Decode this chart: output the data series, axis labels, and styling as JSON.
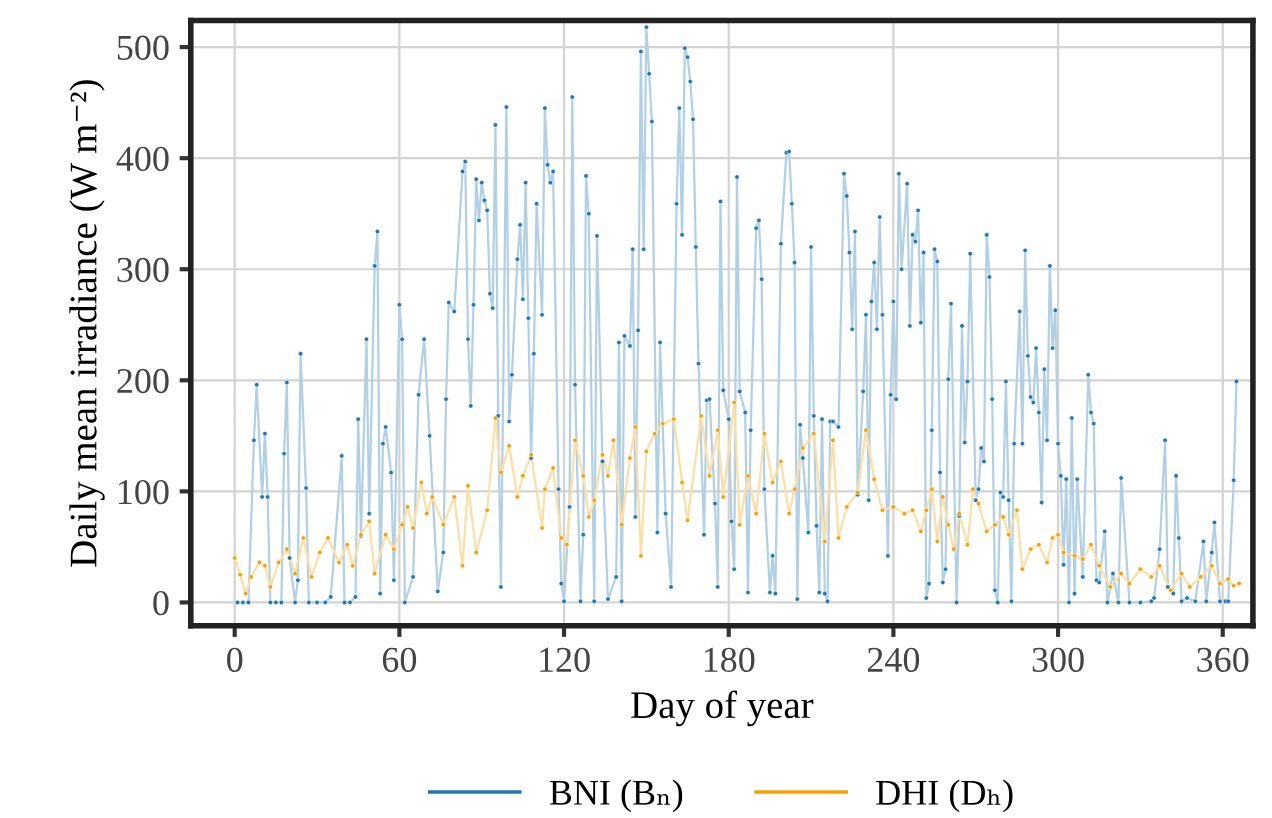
{
  "chart_data": {
    "type": "line",
    "xlabel": "Day of year",
    "ylabel": "Daily mean irradiance (W m⁻²)",
    "xlim": [
      -16,
      371
    ],
    "ylim": [
      -21,
      524
    ],
    "xticks": [
      0,
      60,
      120,
      180,
      240,
      300,
      360
    ],
    "yticks": [
      0,
      100,
      200,
      300,
      400,
      500
    ],
    "grid": true,
    "legend": "bottom",
    "marker": "circle",
    "line_style": "solid",
    "series": [
      {
        "name": "BNI (Bₙ)",
        "color": "#1f78b4",
        "x": [
          1,
          3,
          5,
          7,
          8,
          10,
          11,
          12,
          13,
          15,
          17,
          18,
          19,
          20,
          22,
          23,
          24,
          26,
          27,
          30,
          33,
          35,
          39,
          40,
          42,
          44,
          45,
          46,
          48,
          49,
          51,
          52,
          53,
          54,
          55,
          57,
          58,
          60,
          61,
          62,
          65,
          67,
          69,
          71,
          74,
          76,
          77,
          78,
          80,
          83,
          84,
          85,
          86,
          87,
          88,
          89,
          90,
          91,
          92,
          93,
          94,
          95,
          96,
          97,
          99,
          100,
          101,
          103,
          104,
          105,
          106,
          107,
          108,
          109,
          110,
          112,
          113,
          114,
          115,
          116,
          118,
          119,
          120,
          122,
          123,
          124,
          126,
          127,
          128,
          129,
          131,
          132,
          134,
          136,
          139,
          140,
          141,
          142,
          144,
          145,
          146,
          147,
          148,
          149,
          150,
          151,
          152,
          154,
          155,
          157,
          159,
          161,
          162,
          163,
          164,
          165,
          166,
          167,
          168,
          169,
          171,
          172,
          173,
          175,
          176,
          177,
          178,
          180,
          181,
          182,
          183,
          184,
          186,
          187,
          188,
          190,
          191,
          192,
          193,
          195,
          196,
          197,
          199,
          201,
          202,
          203,
          204,
          205,
          206,
          207,
          209,
          210,
          211,
          212,
          213,
          214,
          215,
          216,
          217,
          218,
          220,
          222,
          223,
          224,
          225,
          226,
          227,
          229,
          230,
          231,
          232,
          233,
          234,
          235,
          236,
          238,
          239,
          240,
          241,
          242,
          243,
          245,
          246,
          247,
          248,
          249,
          250,
          251,
          252,
          253,
          254,
          255,
          256,
          257,
          258,
          259,
          260,
          261,
          263,
          264,
          265,
          266,
          267,
          268,
          270,
          271,
          272,
          273,
          274,
          275,
          276,
          277,
          278,
          279,
          280,
          281,
          282,
          283,
          284,
          286,
          287,
          288,
          289,
          290,
          291,
          292,
          293,
          294,
          295,
          296,
          297,
          298,
          299,
          300,
          301,
          302,
          303,
          304,
          305,
          306,
          307,
          309,
          311,
          312,
          313,
          314,
          315,
          317,
          318,
          320,
          322,
          323,
          326,
          330,
          334,
          335,
          337,
          339,
          340,
          342,
          343,
          344,
          345,
          347,
          350,
          353,
          354,
          356,
          357,
          359,
          361,
          362,
          364,
          365
        ],
        "values": [
          0,
          0,
          0,
          146,
          196,
          95,
          152,
          95,
          0,
          0,
          0,
          134,
          198,
          40,
          0,
          20,
          224,
          103,
          0,
          0,
          0,
          5,
          132,
          0,
          0,
          5,
          165,
          60,
          237,
          80,
          303,
          334,
          8,
          143,
          158,
          117,
          20,
          268,
          237,
          0,
          23,
          187,
          237,
          150,
          10,
          45,
          183,
          270,
          262,
          388,
          397,
          237,
          177,
          268,
          381,
          344,
          378,
          362,
          353,
          278,
          265,
          430,
          168,
          14,
          446,
          163,
          205,
          309,
          340,
          273,
          378,
          256,
          130,
          224,
          359,
          259,
          445,
          394,
          378,
          388,
          102,
          17,
          1,
          86,
          455,
          196,
          1,
          61,
          384,
          350,
          1,
          330,
          127,
          3,
          23,
          234,
          1,
          240,
          231,
          318,
          77,
          245,
          496,
          318,
          518,
          476,
          433,
          63,
          234,
          80,
          14,
          359,
          445,
          331,
          499,
          491,
          469,
          435,
          320,
          215,
          61,
          182,
          183,
          89,
          14,
          361,
          191,
          165,
          73,
          30,
          383,
          190,
          171,
          9,
          155,
          337,
          344,
          291,
          102,
          9,
          42,
          8,
          323,
          405,
          406,
          359,
          306,
          3,
          160,
          130,
          63,
          320,
          168,
          69,
          9,
          165,
          8,
          1,
          163,
          163,
          158,
          386,
          366,
          315,
          246,
          334,
          97,
          190,
          259,
          92,
          271,
          306,
          246,
          347,
          259,
          42,
          187,
          271,
          183,
          386,
          300,
          377,
          249,
          331,
          325,
          353,
          252,
          315,
          4,
          17,
          155,
          318,
          307,
          117,
          18,
          30,
          201,
          269,
          0,
          78,
          249,
          144,
          199,
          314,
          92,
          102,
          139,
          127,
          331,
          293,
          183,
          11,
          0,
          99,
          95,
          199,
          92,
          1,
          143,
          262,
          143,
          317,
          222,
          185,
          180,
          229,
          171,
          90,
          210,
          146,
          303,
          229,
          263,
          143,
          114,
          34,
          111,
          0,
          166,
          8,
          111,
          23,
          205,
          171,
          161,
          20,
          18,
          64,
          0,
          26,
          0,
          112,
          0,
          0,
          1,
          4,
          48,
          146,
          14,
          8,
          114,
          58,
          1,
          4,
          1,
          55,
          1,
          45,
          72,
          1,
          1,
          1,
          110,
          199
        ]
      },
      {
        "name": "DHI (Dₕ)",
        "color": "#f5a300",
        "x": [
          0,
          2,
          4,
          6,
          9,
          11,
          13,
          16,
          19,
          22,
          25,
          28,
          31,
          34,
          38,
          41,
          43,
          46,
          49,
          51,
          55,
          58,
          61,
          63,
          65,
          68,
          70,
          72,
          76,
          80,
          83,
          85,
          88,
          92,
          95,
          97,
          100,
          103,
          105,
          108,
          112,
          113,
          116,
          119,
          121,
          124,
          127,
          129,
          131,
          134,
          136,
          138,
          141,
          144,
          146,
          148,
          150,
          153,
          156,
          160,
          163,
          165,
          170,
          173,
          176,
          178,
          182,
          184,
          187,
          190,
          193,
          196,
          199,
          202,
          204,
          207,
          211,
          215,
          218,
          220,
          223,
          227,
          230,
          233,
          236,
          240,
          244,
          247,
          250,
          252,
          254,
          256,
          258,
          260,
          262,
          264,
          267,
          269,
          271,
          274,
          277,
          280,
          282,
          285,
          287,
          290,
          293,
          296,
          298,
          300,
          302,
          306,
          309,
          312,
          315,
          319,
          323,
          326,
          330,
          334,
          337,
          341,
          345,
          348,
          352,
          356,
          359,
          362,
          364,
          366
        ],
        "values": [
          40,
          25,
          8,
          23,
          36,
          33,
          14,
          36,
          48,
          26,
          58,
          23,
          45,
          58,
          36,
          52,
          33,
          61,
          73,
          26,
          61,
          48,
          70,
          86,
          67,
          108,
          80,
          95,
          70,
          95,
          33,
          105,
          45,
          83,
          166,
          117,
          141,
          95,
          114,
          133,
          67,
          102,
          121,
          58,
          52,
          146,
          114,
          77,
          92,
          133,
          114,
          146,
          70,
          130,
          158,
          42,
          136,
          152,
          161,
          165,
          108,
          74,
          168,
          114,
          155,
          95,
          180,
          70,
          114,
          80,
          152,
          108,
          127,
          80,
          102,
          139,
          152,
          55,
          146,
          58,
          86,
          99,
          155,
          111,
          83,
          86,
          80,
          83,
          64,
          83,
          102,
          55,
          95,
          70,
          48,
          80,
          52,
          102,
          89,
          64,
          70,
          77,
          61,
          83,
          30,
          48,
          52,
          36,
          58,
          61,
          45,
          42,
          39,
          52,
          33,
          14,
          26,
          17,
          30,
          23,
          33,
          11,
          26,
          14,
          23,
          33,
          17,
          21,
          15,
          17
        ]
      }
    ]
  }
}
